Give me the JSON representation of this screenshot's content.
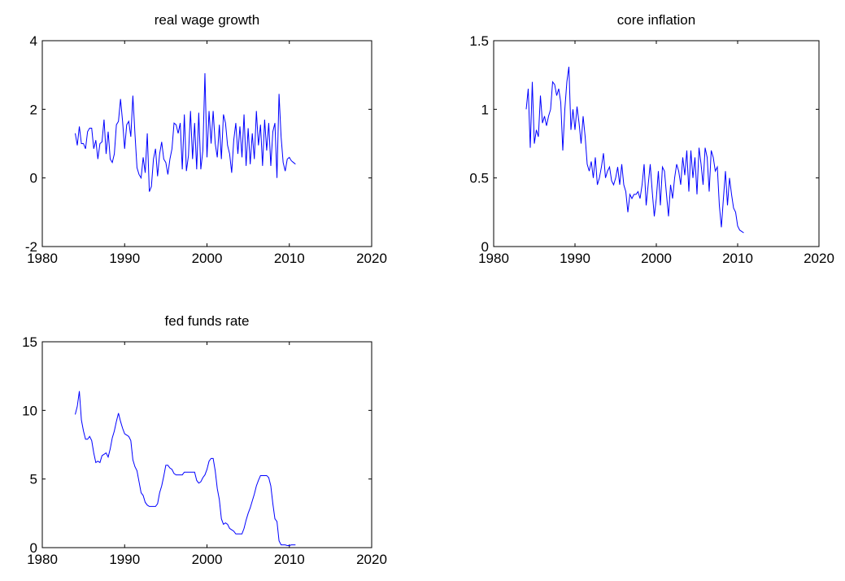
{
  "chart_data": [
    {
      "type": "line",
      "title": "real wage growth",
      "x": [
        1984,
        1984.25,
        1984.5,
        1984.75,
        1985,
        1985.25,
        1985.5,
        1985.75,
        1986,
        1986.25,
        1986.5,
        1986.75,
        1987,
        1987.25,
        1987.5,
        1987.75,
        1988,
        1988.25,
        1988.5,
        1988.75,
        1989,
        1989.25,
        1989.5,
        1989.75,
        1990,
        1990.25,
        1990.5,
        1990.75,
        1991,
        1991.25,
        1991.5,
        1991.75,
        1992,
        1992.25,
        1992.5,
        1992.75,
        1993,
        1993.25,
        1993.5,
        1993.75,
        1994,
        1994.25,
        1994.5,
        1994.75,
        1995,
        1995.25,
        1995.5,
        1995.75,
        1996,
        1996.25,
        1996.5,
        1996.75,
        1997,
        1997.25,
        1997.5,
        1997.75,
        1998,
        1998.25,
        1998.5,
        1998.75,
        1999,
        1999.25,
        1999.5,
        1999.75,
        2000,
        2000.25,
        2000.5,
        2000.75,
        2001,
        2001.25,
        2001.5,
        2001.75,
        2002,
        2002.25,
        2002.5,
        2002.75,
        2003,
        2003.25,
        2003.5,
        2003.75,
        2004,
        2004.25,
        2004.5,
        2004.75,
        2005,
        2005.25,
        2005.5,
        2005.75,
        2006,
        2006.25,
        2006.5,
        2006.75,
        2007,
        2007.25,
        2007.5,
        2007.75,
        2008,
        2008.25,
        2008.5,
        2008.75,
        2009,
        2009.25,
        2009.5,
        2009.75,
        2010,
        2010.25,
        2010.5,
        2010.75
      ],
      "series": [
        {
          "color": "#0000ff",
          "values": [
            1.3,
            0.95,
            1.5,
            1.0,
            1.0,
            0.85,
            1.35,
            1.45,
            1.45,
            0.85,
            1.1,
            0.55,
            1.0,
            1.05,
            1.7,
            0.7,
            1.35,
            0.55,
            0.45,
            0.7,
            1.55,
            1.65,
            2.3,
            1.65,
            0.85,
            1.55,
            1.65,
            1.2,
            2.4,
            1.3,
            0.3,
            0.1,
            0.0,
            0.6,
            0.15,
            1.3,
            -0.4,
            -0.25,
            0.55,
            0.85,
            0.05,
            0.7,
            1.05,
            0.55,
            0.45,
            0.1,
            0.55,
            0.85,
            1.6,
            1.55,
            1.3,
            1.6,
            0.25,
            1.85,
            0.2,
            0.65,
            1.95,
            0.55,
            1.6,
            0.25,
            1.9,
            0.25,
            0.8,
            3.05,
            0.6,
            1.95,
            1.0,
            1.95,
            1.0,
            0.6,
            1.55,
            0.55,
            1.85,
            1.6,
            0.95,
            0.7,
            0.15,
            1.1,
            1.6,
            0.7,
            1.5,
            0.6,
            1.85,
            0.35,
            1.45,
            0.4,
            1.3,
            0.55,
            1.95,
            0.95,
            1.55,
            0.35,
            1.7,
            0.8,
            1.6,
            0.35,
            1.35,
            1.6,
            0.0,
            2.45,
            1.2,
            0.45,
            0.2,
            0.55,
            0.6,
            0.5,
            0.45,
            0.4
          ]
        }
      ],
      "xlim": [
        1980,
        2020
      ],
      "xticks": [
        1980,
        1990,
        2000,
        2010,
        2020
      ],
      "ylim": [
        -2,
        4
      ],
      "yticks": [
        -2,
        0,
        2,
        4
      ]
    },
    {
      "type": "line",
      "title": "core inflation",
      "x": [
        1984,
        1984.25,
        1984.5,
        1984.75,
        1985,
        1985.25,
        1985.5,
        1985.75,
        1986,
        1986.25,
        1986.5,
        1986.75,
        1987,
        1987.25,
        1987.5,
        1987.75,
        1988,
        1988.25,
        1988.5,
        1988.75,
        1989,
        1989.25,
        1989.5,
        1989.75,
        1990,
        1990.25,
        1990.5,
        1990.75,
        1991,
        1991.25,
        1991.5,
        1991.75,
        1992,
        1992.25,
        1992.5,
        1992.75,
        1993,
        1993.25,
        1993.5,
        1993.75,
        1994,
        1994.25,
        1994.5,
        1994.75,
        1995,
        1995.25,
        1995.5,
        1995.75,
        1996,
        1996.25,
        1996.5,
        1996.75,
        1997,
        1997.25,
        1997.5,
        1997.75,
        1998,
        1998.25,
        1998.5,
        1998.75,
        1999,
        1999.25,
        1999.5,
        1999.75,
        2000,
        2000.25,
        2000.5,
        2000.75,
        2001,
        2001.25,
        2001.5,
        2001.75,
        2002,
        2002.25,
        2002.5,
        2002.75,
        2003,
        2003.25,
        2003.5,
        2003.75,
        2004,
        2004.25,
        2004.5,
        2004.75,
        2005,
        2005.25,
        2005.5,
        2005.75,
        2006,
        2006.25,
        2006.5,
        2006.75,
        2007,
        2007.25,
        2007.5,
        2007.75,
        2008,
        2008.25,
        2008.5,
        2008.75,
        2009,
        2009.25,
        2009.5,
        2009.75,
        2010,
        2010.25,
        2010.5,
        2010.75
      ],
      "series": [
        {
          "color": "#0000ff",
          "values": [
            1.0,
            1.15,
            0.72,
            1.2,
            0.75,
            0.85,
            0.8,
            1.1,
            0.9,
            0.95,
            0.88,
            0.95,
            1.0,
            1.2,
            1.18,
            1.1,
            1.15,
            1.05,
            0.7,
            1.0,
            1.2,
            1.31,
            0.85,
            1.0,
            0.85,
            1.02,
            0.9,
            0.75,
            0.95,
            0.8,
            0.6,
            0.55,
            0.62,
            0.5,
            0.65,
            0.45,
            0.5,
            0.58,
            0.68,
            0.5,
            0.55,
            0.58,
            0.48,
            0.45,
            0.5,
            0.58,
            0.45,
            0.6,
            0.45,
            0.4,
            0.25,
            0.38,
            0.35,
            0.38,
            0.38,
            0.4,
            0.35,
            0.45,
            0.6,
            0.3,
            0.45,
            0.6,
            0.4,
            0.22,
            0.35,
            0.55,
            0.3,
            0.58,
            0.55,
            0.38,
            0.22,
            0.45,
            0.35,
            0.5,
            0.6,
            0.55,
            0.45,
            0.65,
            0.52,
            0.7,
            0.4,
            0.7,
            0.5,
            0.65,
            0.38,
            0.72,
            0.6,
            0.45,
            0.72,
            0.65,
            0.4,
            0.7,
            0.65,
            0.55,
            0.58,
            0.3,
            0.14,
            0.35,
            0.55,
            0.3,
            0.5,
            0.38,
            0.28,
            0.25,
            0.15,
            0.12,
            0.11,
            0.1
          ]
        }
      ],
      "xlim": [
        1980,
        2020
      ],
      "xticks": [
        1980,
        1990,
        2000,
        2010,
        2020
      ],
      "ylim": [
        0,
        1.5
      ],
      "yticks": [
        0,
        0.5,
        1,
        1.5
      ]
    },
    {
      "type": "line",
      "title": "fed funds rate",
      "x": [
        1984,
        1984.25,
        1984.5,
        1984.75,
        1985,
        1985.25,
        1985.5,
        1985.75,
        1986,
        1986.25,
        1986.5,
        1986.75,
        1987,
        1987.25,
        1987.5,
        1987.75,
        1988,
        1988.25,
        1988.5,
        1988.75,
        1989,
        1989.25,
        1989.5,
        1989.75,
        1990,
        1990.25,
        1990.5,
        1990.75,
        1991,
        1991.25,
        1991.5,
        1991.75,
        1992,
        1992.25,
        1992.5,
        1992.75,
        1993,
        1993.25,
        1993.5,
        1993.75,
        1994,
        1994.25,
        1994.5,
        1994.75,
        1995,
        1995.25,
        1995.5,
        1995.75,
        1996,
        1996.25,
        1996.5,
        1996.75,
        1997,
        1997.25,
        1997.5,
        1997.75,
        1998,
        1998.25,
        1998.5,
        1998.75,
        1999,
        1999.25,
        1999.5,
        1999.75,
        2000,
        2000.25,
        2000.5,
        2000.75,
        2001,
        2001.25,
        2001.5,
        2001.75,
        2002,
        2002.25,
        2002.5,
        2002.75,
        2003,
        2003.25,
        2003.5,
        2003.75,
        2004,
        2004.25,
        2004.5,
        2004.75,
        2005,
        2005.25,
        2005.5,
        2005.75,
        2006,
        2006.25,
        2006.5,
        2006.75,
        2007,
        2007.25,
        2007.5,
        2007.75,
        2008,
        2008.25,
        2008.5,
        2008.75,
        2009,
        2009.25,
        2009.5,
        2009.75,
        2010,
        2010.25,
        2010.5,
        2010.75
      ],
      "series": [
        {
          "color": "#0000ff",
          "values": [
            9.7,
            10.3,
            11.4,
            9.3,
            8.5,
            7.9,
            7.9,
            8.1,
            7.8,
            6.9,
            6.2,
            6.3,
            6.2,
            6.7,
            6.8,
            6.9,
            6.6,
            7.2,
            8.0,
            8.5,
            9.2,
            9.8,
            9.2,
            8.7,
            8.3,
            8.2,
            8.1,
            7.8,
            6.4,
            5.9,
            5.6,
            4.8,
            4.0,
            3.8,
            3.3,
            3.1,
            3.0,
            3.0,
            3.0,
            3.0,
            3.2,
            4.0,
            4.5,
            5.2,
            6.0,
            6.0,
            5.8,
            5.7,
            5.4,
            5.3,
            5.3,
            5.3,
            5.3,
            5.5,
            5.5,
            5.5,
            5.5,
            5.5,
            5.5,
            4.9,
            4.7,
            4.8,
            5.1,
            5.3,
            5.7,
            6.3,
            6.5,
            6.5,
            5.6,
            4.3,
            3.5,
            2.1,
            1.7,
            1.8,
            1.7,
            1.4,
            1.3,
            1.2,
            1.0,
            1.0,
            1.0,
            1.0,
            1.4,
            2.0,
            2.5,
            2.9,
            3.4,
            3.9,
            4.5,
            4.9,
            5.25,
            5.25,
            5.25,
            5.25,
            5.1,
            4.5,
            3.2,
            2.1,
            1.9,
            0.5,
            0.2,
            0.2,
            0.2,
            0.15,
            0.15,
            0.2,
            0.2,
            0.2
          ]
        }
      ],
      "xlim": [
        1980,
        2020
      ],
      "xticks": [
        1980,
        1990,
        2000,
        2010,
        2020
      ],
      "ylim": [
        0,
        15
      ],
      "yticks": [
        0,
        5,
        10,
        15
      ]
    }
  ]
}
